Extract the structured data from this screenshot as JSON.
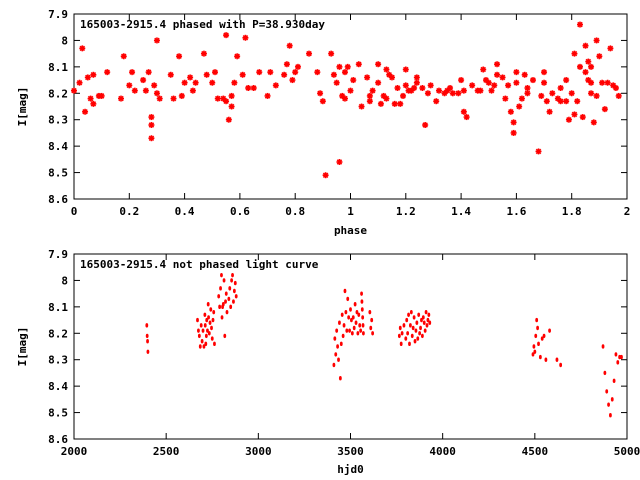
{
  "chart_data": [
    {
      "type": "scatter",
      "title": "165003-2915.4 phased with P=38.930day",
      "xlabel": "phase",
      "ylabel": "I[mag]",
      "xlim": [
        0,
        2
      ],
      "ylim": [
        8.6,
        7.9
      ],
      "y_inverted": true,
      "xticks": [
        "0",
        "0.2",
        "0.4",
        "0.6",
        "0.8",
        "1",
        "1.2",
        "1.4",
        "1.6",
        "1.8",
        "2"
      ],
      "xtick_values": [
        0,
        0.2,
        0.4,
        0.6,
        0.8,
        1.0,
        1.2,
        1.4,
        1.6,
        1.8,
        2.0
      ],
      "yticks": [
        "7.9",
        "8",
        "8.1",
        "8.2",
        "8.3",
        "8.4",
        "8.5",
        "8.6"
      ],
      "ytick_values": [
        7.9,
        8.0,
        8.1,
        8.2,
        8.3,
        8.4,
        8.5,
        8.6
      ],
      "grid": false,
      "marker": "star",
      "color": "#ff0000",
      "points": [
        [
          0.0,
          8.19
        ],
        [
          0.02,
          8.16
        ],
        [
          0.03,
          8.03
        ],
        [
          0.04,
          8.27
        ],
        [
          0.05,
          8.14
        ],
        [
          0.06,
          8.22
        ],
        [
          0.07,
          8.13
        ],
        [
          0.07,
          8.24
        ],
        [
          0.09,
          8.21
        ],
        [
          0.1,
          8.21
        ],
        [
          0.12,
          8.12
        ],
        [
          0.17,
          8.22
        ],
        [
          0.18,
          8.06
        ],
        [
          0.2,
          8.17
        ],
        [
          0.21,
          8.12
        ],
        [
          0.22,
          8.19
        ],
        [
          0.25,
          8.15
        ],
        [
          0.26,
          8.19
        ],
        [
          0.27,
          8.12
        ],
        [
          0.28,
          8.29
        ],
        [
          0.28,
          8.32
        ],
        [
          0.28,
          8.37
        ],
        [
          0.29,
          8.17
        ],
        [
          0.3,
          8.0
        ],
        [
          0.3,
          8.2
        ],
        [
          0.31,
          8.22
        ],
        [
          0.35,
          8.13
        ],
        [
          0.36,
          8.22
        ],
        [
          0.38,
          8.06
        ],
        [
          0.39,
          8.21
        ],
        [
          0.4,
          8.16
        ],
        [
          0.42,
          8.14
        ],
        [
          0.43,
          8.19
        ],
        [
          0.44,
          8.16
        ],
        [
          0.47,
          8.05
        ],
        [
          0.48,
          8.13
        ],
        [
          0.5,
          8.16
        ],
        [
          0.51,
          8.12
        ],
        [
          0.52,
          8.22
        ],
        [
          0.54,
          8.22
        ],
        [
          0.55,
          8.23
        ],
        [
          0.55,
          7.98
        ],
        [
          0.56,
          8.3
        ],
        [
          0.57,
          8.21
        ],
        [
          0.57,
          8.25
        ],
        [
          0.58,
          8.16
        ],
        [
          0.59,
          8.06
        ],
        [
          0.61,
          8.13
        ],
        [
          0.62,
          7.99
        ],
        [
          0.63,
          8.18
        ],
        [
          0.65,
          8.18
        ],
        [
          0.67,
          8.12
        ],
        [
          0.7,
          8.21
        ],
        [
          0.71,
          8.12
        ],
        [
          0.73,
          8.17
        ],
        [
          0.76,
          8.13
        ],
        [
          0.77,
          8.09
        ],
        [
          0.78,
          8.02
        ],
        [
          0.79,
          8.15
        ],
        [
          0.8,
          8.12
        ],
        [
          0.81,
          8.1
        ],
        [
          0.85,
          8.05
        ],
        [
          0.88,
          8.12
        ],
        [
          0.89,
          8.2
        ],
        [
          0.9,
          8.23
        ],
        [
          0.91,
          8.51
        ],
        [
          0.93,
          8.05
        ],
        [
          0.94,
          8.13
        ],
        [
          0.95,
          8.16
        ],
        [
          0.96,
          8.46
        ],
        [
          0.96,
          8.1
        ],
        [
          0.97,
          8.21
        ],
        [
          0.98,
          8.12
        ],
        [
          0.98,
          8.22
        ],
        [
          0.99,
          8.1
        ],
        [
          1.0,
          8.19
        ],
        [
          1.01,
          8.15
        ],
        [
          1.03,
          8.09
        ],
        [
          1.04,
          8.25
        ],
        [
          1.06,
          8.14
        ],
        [
          1.07,
          8.23
        ],
        [
          1.07,
          8.21
        ],
        [
          1.08,
          8.19
        ],
        [
          1.1,
          8.16
        ],
        [
          1.1,
          8.09
        ],
        [
          1.11,
          8.24
        ],
        [
          1.12,
          8.21
        ],
        [
          1.13,
          8.11
        ],
        [
          1.13,
          8.22
        ],
        [
          1.14,
          8.13
        ],
        [
          1.15,
          8.14
        ],
        [
          1.16,
          8.24
        ],
        [
          1.17,
          8.18
        ],
        [
          1.18,
          8.24
        ],
        [
          1.19,
          8.21
        ],
        [
          1.2,
          8.17
        ],
        [
          1.2,
          8.11
        ],
        [
          1.21,
          8.19
        ],
        [
          1.22,
          8.19
        ],
        [
          1.23,
          8.18
        ],
        [
          1.24,
          8.14
        ],
        [
          1.24,
          8.16
        ],
        [
          1.26,
          8.18
        ],
        [
          1.27,
          8.32
        ],
        [
          1.28,
          8.2
        ],
        [
          1.29,
          8.17
        ],
        [
          1.31,
          8.23
        ],
        [
          1.32,
          8.19
        ],
        [
          1.34,
          8.2
        ],
        [
          1.35,
          8.19
        ],
        [
          1.36,
          8.18
        ],
        [
          1.37,
          8.2
        ],
        [
          1.39,
          8.2
        ],
        [
          1.4,
          8.15
        ],
        [
          1.41,
          8.19
        ],
        [
          1.41,
          8.27
        ],
        [
          1.42,
          8.29
        ],
        [
          1.44,
          8.17
        ],
        [
          1.46,
          8.19
        ],
        [
          1.47,
          8.19
        ],
        [
          1.48,
          8.11
        ],
        [
          1.49,
          8.15
        ],
        [
          1.5,
          8.16
        ],
        [
          1.51,
          8.19
        ],
        [
          1.52,
          8.17
        ],
        [
          1.53,
          8.13
        ],
        [
          1.53,
          8.09
        ],
        [
          1.55,
          8.14
        ],
        [
          1.56,
          8.22
        ],
        [
          1.57,
          8.17
        ],
        [
          1.58,
          8.27
        ],
        [
          1.59,
          8.31
        ],
        [
          1.59,
          8.35
        ],
        [
          1.6,
          8.12
        ],
        [
          1.6,
          8.16
        ],
        [
          1.61,
          8.25
        ],
        [
          1.62,
          8.22
        ],
        [
          1.63,
          8.13
        ],
        [
          1.64,
          8.2
        ],
        [
          1.64,
          8.18
        ],
        [
          1.66,
          8.15
        ],
        [
          1.68,
          8.42
        ],
        [
          1.69,
          8.21
        ],
        [
          1.7,
          8.12
        ],
        [
          1.7,
          8.16
        ],
        [
          1.71,
          8.23
        ],
        [
          1.72,
          8.27
        ],
        [
          1.73,
          8.2
        ],
        [
          1.75,
          8.22
        ],
        [
          1.76,
          8.23
        ],
        [
          1.76,
          8.18
        ],
        [
          1.78,
          8.23
        ],
        [
          1.78,
          8.15
        ],
        [
          1.79,
          8.3
        ],
        [
          1.8,
          8.2
        ],
        [
          1.81,
          8.28
        ],
        [
          1.81,
          8.05
        ],
        [
          1.82,
          8.23
        ],
        [
          1.83,
          7.94
        ],
        [
          1.83,
          8.1
        ],
        [
          1.84,
          8.29
        ],
        [
          1.85,
          8.02
        ],
        [
          1.85,
          8.12
        ],
        [
          1.86,
          8.08
        ],
        [
          1.86,
          8.15
        ],
        [
          1.87,
          8.2
        ],
        [
          1.87,
          8.1
        ],
        [
          1.87,
          8.16
        ],
        [
          1.88,
          8.31
        ],
        [
          1.89,
          8.21
        ],
        [
          1.89,
          8.0
        ],
        [
          1.9,
          8.06
        ],
        [
          1.91,
          8.16
        ],
        [
          1.92,
          8.26
        ],
        [
          1.93,
          8.16
        ],
        [
          1.94,
          8.03
        ],
        [
          1.95,
          8.17
        ],
        [
          1.96,
          8.18
        ],
        [
          1.97,
          8.21
        ]
      ]
    },
    {
      "type": "scatter",
      "title": "165003-2915.4 not phased light curve",
      "xlabel": "hjd0",
      "ylabel": "I[mag]",
      "xlim": [
        2000,
        5000
      ],
      "ylim": [
        8.6,
        7.9
      ],
      "y_inverted": true,
      "xticks": [
        "2000",
        "2500",
        "3000",
        "3500",
        "4000",
        "4500",
        "5000"
      ],
      "xtick_values": [
        2000,
        2500,
        3000,
        3500,
        4000,
        4500,
        5000
      ],
      "yticks": [
        "7.9",
        "8",
        "8.1",
        "8.2",
        "8.3",
        "8.4",
        "8.5",
        "8.6"
      ],
      "ytick_values": [
        7.9,
        8.0,
        8.1,
        8.2,
        8.3,
        8.4,
        8.5,
        8.6
      ],
      "grid": false,
      "marker": "dot",
      "color": "#ff0000",
      "points": [
        [
          2395,
          8.17
        ],
        [
          2397,
          8.21
        ],
        [
          2399,
          8.23
        ],
        [
          2401,
          8.27
        ],
        [
          2670,
          8.15
        ],
        [
          2675,
          8.19
        ],
        [
          2680,
          8.21
        ],
        [
          2685,
          8.25
        ],
        [
          2690,
          8.17
        ],
        [
          2695,
          8.23
        ],
        [
          2700,
          8.19
        ],
        [
          2705,
          8.25
        ],
        [
          2710,
          8.13
        ],
        [
          2712,
          8.17
        ],
        [
          2715,
          8.24
        ],
        [
          2718,
          8.21
        ],
        [
          2720,
          8.15
        ],
        [
          2724,
          8.19
        ],
        [
          2728,
          8.09
        ],
        [
          2730,
          8.14
        ],
        [
          2734,
          8.2
        ],
        [
          2738,
          8.16
        ],
        [
          2742,
          8.11
        ],
        [
          2746,
          8.18
        ],
        [
          2750,
          8.22
        ],
        [
          2754,
          8.15
        ],
        [
          2758,
          8.12
        ],
        [
          2762,
          8.24
        ],
        [
          2785,
          8.06
        ],
        [
          2790,
          8.1
        ],
        [
          2795,
          8.03
        ],
        [
          2800,
          7.98
        ],
        [
          2803,
          8.14
        ],
        [
          2806,
          8.1
        ],
        [
          2810,
          8.09
        ],
        [
          2814,
          8.0
        ],
        [
          2818,
          8.21
        ],
        [
          2822,
          8.08
        ],
        [
          2826,
          8.05
        ],
        [
          2830,
          8.12
        ],
        [
          2840,
          8.07
        ],
        [
          2845,
          8.03
        ],
        [
          2850,
          8.1
        ],
        [
          2855,
          8.0
        ],
        [
          2860,
          7.98
        ],
        [
          2865,
          8.08
        ],
        [
          2870,
          8.04
        ],
        [
          2875,
          8.01
        ],
        [
          2880,
          8.06
        ],
        [
          3410,
          8.32
        ],
        [
          3415,
          8.22
        ],
        [
          3420,
          8.28
        ],
        [
          3425,
          8.19
        ],
        [
          3430,
          8.25
        ],
        [
          3435,
          8.3
        ],
        [
          3440,
          8.16
        ],
        [
          3445,
          8.37
        ],
        [
          3450,
          8.24
        ],
        [
          3455,
          8.13
        ],
        [
          3460,
          8.21
        ],
        [
          3465,
          8.17
        ],
        [
          3470,
          8.04
        ],
        [
          3475,
          8.12
        ],
        [
          3480,
          8.19
        ],
        [
          3485,
          8.07
        ],
        [
          3490,
          8.14
        ],
        [
          3495,
          8.19
        ],
        [
          3500,
          8.11
        ],
        [
          3505,
          8.15
        ],
        [
          3510,
          8.2
        ],
        [
          3515,
          8.14
        ],
        [
          3520,
          8.18
        ],
        [
          3525,
          8.09
        ],
        [
          3530,
          8.16
        ],
        [
          3535,
          8.12
        ],
        [
          3540,
          8.2
        ],
        [
          3545,
          8.13
        ],
        [
          3550,
          8.17
        ],
        [
          3555,
          8.19
        ],
        [
          3560,
          8.05
        ],
        [
          3562,
          8.08
        ],
        [
          3564,
          8.11
        ],
        [
          3566,
          8.14
        ],
        [
          3568,
          8.17
        ],
        [
          3570,
          8.2
        ],
        [
          3605,
          8.12
        ],
        [
          3610,
          8.18
        ],
        [
          3615,
          8.15
        ],
        [
          3620,
          8.2
        ],
        [
          3765,
          8.21
        ],
        [
          3770,
          8.18
        ],
        [
          3775,
          8.24
        ],
        [
          3780,
          8.2
        ],
        [
          3790,
          8.17
        ],
        [
          3800,
          8.22
        ],
        [
          3805,
          8.15
        ],
        [
          3810,
          8.2
        ],
        [
          3815,
          8.13
        ],
        [
          3820,
          8.24
        ],
        [
          3825,
          8.17
        ],
        [
          3830,
          8.12
        ],
        [
          3835,
          8.21
        ],
        [
          3840,
          8.18
        ],
        [
          3845,
          8.14
        ],
        [
          3850,
          8.23
        ],
        [
          3855,
          8.19
        ],
        [
          3860,
          8.16
        ],
        [
          3865,
          8.22
        ],
        [
          3870,
          8.13
        ],
        [
          3875,
          8.2
        ],
        [
          3880,
          8.18
        ],
        [
          3885,
          8.15
        ],
        [
          3890,
          8.21
        ],
        [
          3895,
          8.14
        ],
        [
          3900,
          8.16
        ],
        [
          3905,
          8.19
        ],
        [
          3910,
          8.12
        ],
        [
          3915,
          8.17
        ],
        [
          3920,
          8.15
        ],
        [
          3925,
          8.13
        ],
        [
          3930,
          8.16
        ],
        [
          4490,
          8.28
        ],
        [
          4495,
          8.25
        ],
        [
          4500,
          8.27
        ],
        [
          4505,
          8.21
        ],
        [
          4510,
          8.15
        ],
        [
          4515,
          8.18
        ],
        [
          4520,
          8.24
        ],
        [
          4530,
          8.29
        ],
        [
          4540,
          8.22
        ],
        [
          4550,
          8.21
        ],
        [
          4560,
          8.3
        ],
        [
          4580,
          8.19
        ],
        [
          4620,
          8.3
        ],
        [
          4640,
          8.32
        ],
        [
          4870,
          8.25
        ],
        [
          4880,
          8.35
        ],
        [
          4890,
          8.42
        ],
        [
          4900,
          8.47
        ],
        [
          4910,
          8.51
        ],
        [
          4920,
          8.45
        ],
        [
          4930,
          8.38
        ],
        [
          4940,
          8.28
        ],
        [
          4950,
          8.31
        ],
        [
          4960,
          8.29
        ],
        [
          4970,
          8.29
        ]
      ]
    }
  ]
}
